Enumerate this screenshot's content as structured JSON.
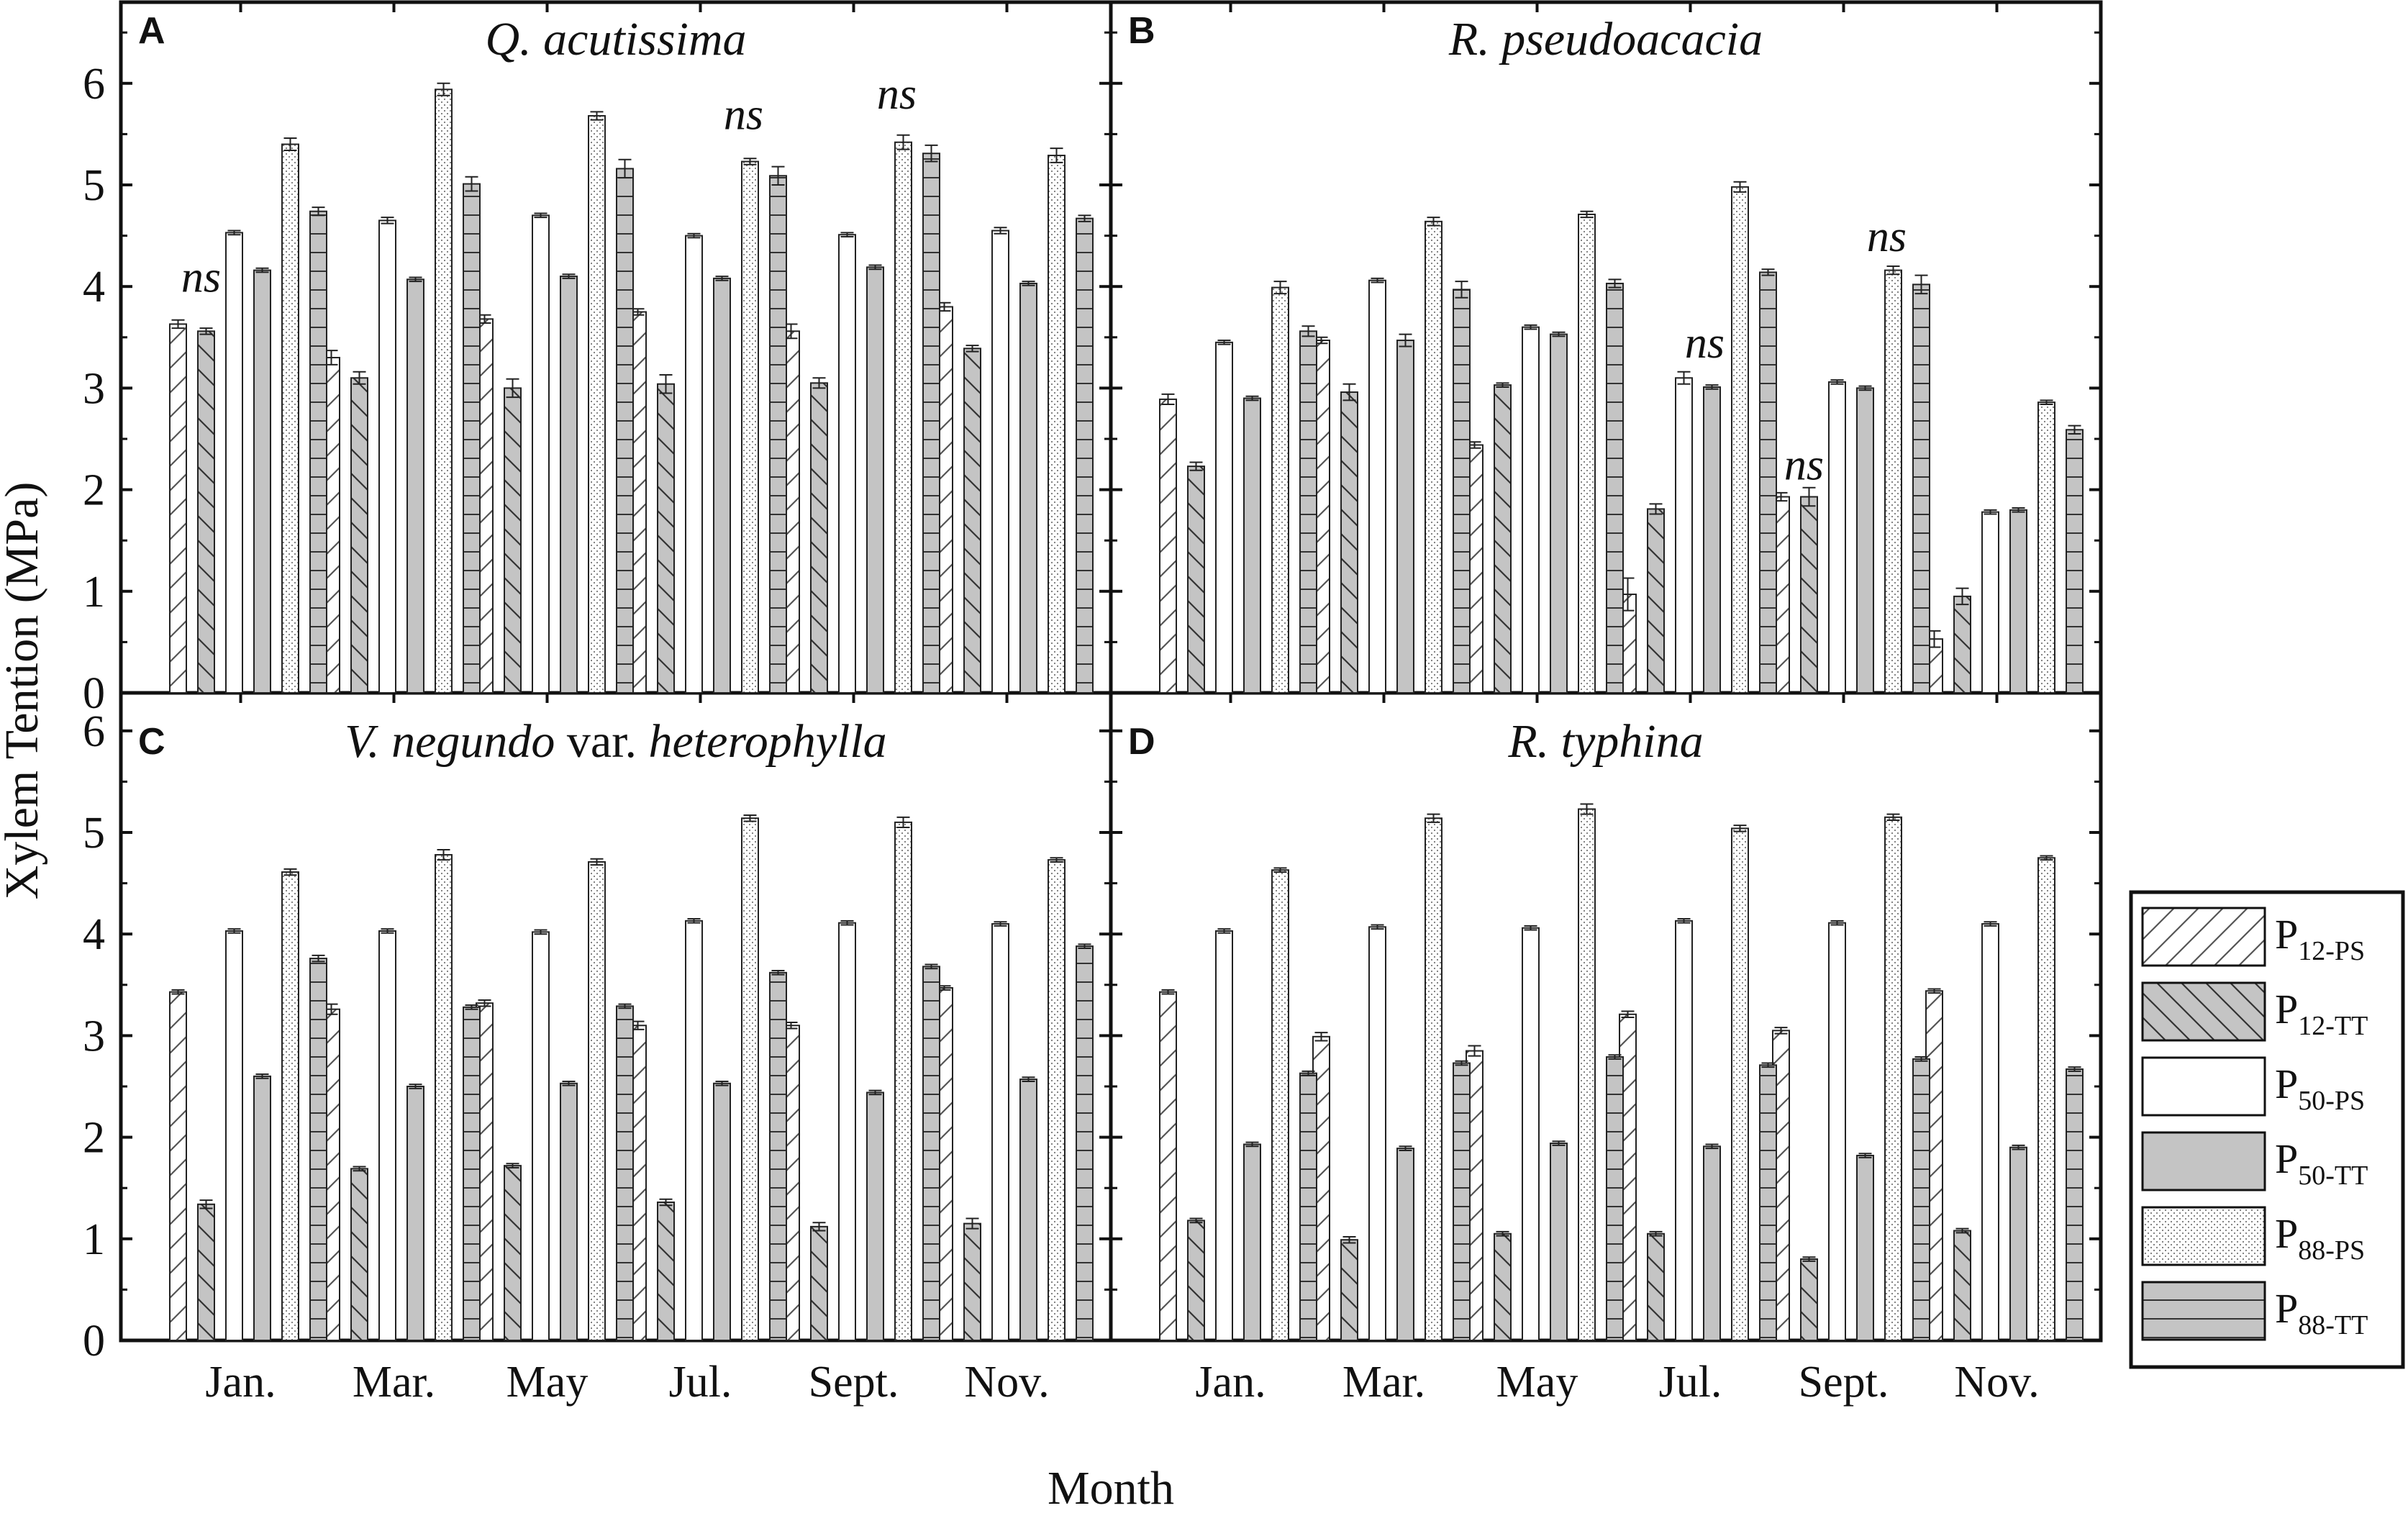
{
  "y_axis_title": "Xylem Tention (MPa)",
  "x_axis_title": "Month",
  "chart_data": [
    {
      "type": "bar",
      "panel": "A",
      "title": "Q. acutissima",
      "title_parts": [
        {
          "text": "Q. acutissima",
          "italic": true
        }
      ],
      "categories": [
        "Jan.",
        "Mar.",
        "May",
        "Jul.",
        "Sept.",
        "Nov."
      ],
      "ylim": [
        0,
        6.5
      ],
      "yticks": [
        0,
        1,
        2,
        3,
        4,
        5,
        6
      ],
      "series": [
        {
          "name": "P12-PS",
          "values": [
            3.63,
            3.3,
            3.68,
            3.75,
            3.56,
            3.8
          ],
          "errors": [
            0.04,
            0.07,
            0.04,
            0.03,
            0.07,
            0.04
          ]
        },
        {
          "name": "P12-TT",
          "values": [
            3.56,
            3.1,
            3.0,
            3.04,
            3.05,
            3.39
          ],
          "errors": [
            0.03,
            0.06,
            0.09,
            0.09,
            0.05,
            0.03
          ]
        },
        {
          "name": "P50-PS",
          "values": [
            4.53,
            4.65,
            4.7,
            4.5,
            4.51,
            4.55
          ],
          "errors": [
            0.02,
            0.03,
            0.02,
            0.02,
            0.02,
            0.03
          ]
        },
        {
          "name": "P50-TT",
          "values": [
            4.16,
            4.07,
            4.1,
            4.08,
            4.19,
            4.03
          ],
          "errors": [
            0.02,
            0.02,
            0.02,
            0.02,
            0.02,
            0.02
          ]
        },
        {
          "name": "P88-PS",
          "values": [
            5.4,
            5.94,
            5.68,
            5.23,
            5.42,
            5.29
          ],
          "errors": [
            0.06,
            0.06,
            0.04,
            0.03,
            0.07,
            0.07
          ]
        },
        {
          "name": "P88-TT",
          "values": [
            4.74,
            5.01,
            5.16,
            5.09,
            5.31,
            4.67
          ],
          "errors": [
            0.04,
            0.07,
            0.09,
            0.09,
            0.08,
            0.03
          ]
        }
      ],
      "annotations": [
        {
          "text": "ns",
          "category": 0,
          "value": 3.95
        },
        {
          "text": "ns",
          "category": 3,
          "value": 5.55
        },
        {
          "text": "ns",
          "category": 4,
          "value": 5.75
        }
      ]
    },
    {
      "type": "bar",
      "panel": "B",
      "title": "R. pseudoacacia",
      "title_parts": [
        {
          "text": "R. pseudoacacia",
          "italic": true
        }
      ],
      "categories": [
        "Jan.",
        "Mar.",
        "May",
        "Jul.",
        "Sept.",
        "Nov."
      ],
      "ylim": [
        0,
        6.5
      ],
      "yticks": [
        0,
        1,
        2,
        3,
        4,
        5,
        6
      ],
      "series": [
        {
          "name": "P12-PS",
          "values": [
            2.89,
            3.47,
            2.44,
            0.97,
            1.93,
            0.53
          ],
          "errors": [
            0.05,
            0.03,
            0.03,
            0.16,
            0.04,
            0.08
          ]
        },
        {
          "name": "P12-TT",
          "values": [
            2.23,
            2.96,
            3.03,
            1.81,
            1.93,
            0.95
          ],
          "errors": [
            0.04,
            0.08,
            0.02,
            0.05,
            0.09,
            0.08
          ]
        },
        {
          "name": "P50-PS",
          "values": [
            3.45,
            4.06,
            3.6,
            3.1,
            3.06,
            1.78
          ],
          "errors": [
            0.02,
            0.02,
            0.02,
            0.06,
            0.02,
            0.02
          ]
        },
        {
          "name": "P50-TT",
          "values": [
            2.9,
            3.47,
            3.53,
            3.01,
            3.0,
            1.8
          ],
          "errors": [
            0.02,
            0.06,
            0.02,
            0.02,
            0.02,
            0.02
          ]
        },
        {
          "name": "P88-PS",
          "values": [
            3.99,
            4.64,
            4.71,
            4.98,
            4.16,
            2.86
          ],
          "errors": [
            0.06,
            0.04,
            0.03,
            0.05,
            0.04,
            0.02
          ]
        },
        {
          "name": "P88-TT",
          "values": [
            3.56,
            3.97,
            4.03,
            4.14,
            4.02,
            2.59
          ],
          "errors": [
            0.05,
            0.08,
            0.04,
            0.03,
            0.09,
            0.04
          ]
        }
      ],
      "annotations": [
        {
          "text": "ns",
          "category": 3,
          "value": 3.3
        },
        {
          "text": "ns",
          "category": 4,
          "value": 2.1
        },
        {
          "text": "ns",
          "category": 4,
          "value": 4.35
        }
      ]
    },
    {
      "type": "bar",
      "panel": "C",
      "title": "V. negundo var. heterophylla",
      "title_parts": [
        {
          "text": "V. negundo",
          "italic": true
        },
        {
          "text": " var. ",
          "italic": false
        },
        {
          "text": "heterophylla",
          "italic": true
        }
      ],
      "categories": [
        "Jan.",
        "Mar.",
        "May",
        "Jul.",
        "Sept.",
        "Nov."
      ],
      "ylim": [
        0,
        6.5
      ],
      "yticks": [
        0,
        1,
        2,
        3,
        4,
        5,
        6
      ],
      "series": [
        {
          "name": "P12-PS",
          "values": [
            3.43,
            3.26,
            3.32,
            3.1,
            3.1,
            3.47
          ],
          "errors": [
            0.02,
            0.05,
            0.03,
            0.04,
            0.03,
            0.02
          ]
        },
        {
          "name": "P12-TT",
          "values": [
            1.34,
            1.69,
            1.72,
            1.36,
            1.12,
            1.15
          ],
          "errors": [
            0.04,
            0.02,
            0.02,
            0.03,
            0.04,
            0.05
          ]
        },
        {
          "name": "P50-PS",
          "values": [
            4.03,
            4.03,
            4.02,
            4.13,
            4.11,
            4.1
          ],
          "errors": [
            0.02,
            0.02,
            0.02,
            0.02,
            0.02,
            0.02
          ]
        },
        {
          "name": "P50-TT",
          "values": [
            2.6,
            2.5,
            2.53,
            2.53,
            2.44,
            2.57
          ],
          "errors": [
            0.02,
            0.02,
            0.02,
            0.02,
            0.02,
            0.02
          ]
        },
        {
          "name": "P88-PS",
          "values": [
            4.61,
            4.78,
            4.71,
            5.14,
            5.1,
            4.73
          ],
          "errors": [
            0.03,
            0.05,
            0.03,
            0.03,
            0.05,
            0.02
          ]
        },
        {
          "name": "P88-TT",
          "values": [
            3.76,
            3.28,
            3.29,
            3.62,
            3.68,
            3.88
          ],
          "errors": [
            0.03,
            0.02,
            0.02,
            0.02,
            0.02,
            0.02
          ]
        }
      ],
      "annotations": []
    },
    {
      "type": "bar",
      "panel": "D",
      "title": "R. typhina",
      "title_parts": [
        {
          "text": "R. typhina",
          "italic": true
        }
      ],
      "categories": [
        "Jan.",
        "Mar.",
        "May",
        "Jul.",
        "Sept.",
        "Nov."
      ],
      "ylim": [
        0,
        6.5
      ],
      "yticks": [
        0,
        1,
        2,
        3,
        4,
        5,
        6
      ],
      "series": [
        {
          "name": "P12-PS",
          "values": [
            3.43,
            2.99,
            2.85,
            3.21,
            3.05,
            3.44
          ],
          "errors": [
            0.02,
            0.04,
            0.05,
            0.03,
            0.03,
            0.02
          ]
        },
        {
          "name": "P12-TT",
          "values": [
            1.18,
            0.99,
            1.05,
            1.05,
            0.8,
            1.08
          ],
          "errors": [
            0.02,
            0.03,
            0.02,
            0.02,
            0.02,
            0.02
          ]
        },
        {
          "name": "P50-PS",
          "values": [
            4.03,
            4.07,
            4.06,
            4.13,
            4.11,
            4.1
          ],
          "errors": [
            0.02,
            0.02,
            0.02,
            0.02,
            0.02,
            0.02
          ]
        },
        {
          "name": "P50-TT",
          "values": [
            1.93,
            1.89,
            1.94,
            1.91,
            1.82,
            1.9
          ],
          "errors": [
            0.02,
            0.02,
            0.02,
            0.02,
            0.02,
            0.02
          ]
        },
        {
          "name": "P88-PS",
          "values": [
            4.63,
            5.14,
            5.23,
            5.04,
            5.15,
            4.75
          ],
          "errors": [
            0.02,
            0.04,
            0.05,
            0.03,
            0.03,
            0.02
          ]
        },
        {
          "name": "P88-TT",
          "values": [
            2.63,
            2.73,
            2.79,
            2.71,
            2.77,
            2.67
          ],
          "errors": [
            0.02,
            0.02,
            0.02,
            0.02,
            0.02,
            0.02
          ]
        }
      ],
      "annotations": []
    }
  ],
  "legend": {
    "placement": "right",
    "entries": [
      {
        "base": "P",
        "sub": "12-PS",
        "pattern": "hatch-slash"
      },
      {
        "base": "P",
        "sub": "12-TT",
        "pattern": "hatch-backslash"
      },
      {
        "base": "P",
        "sub": "50-PS",
        "pattern": "open"
      },
      {
        "base": "P",
        "sub": "50-TT",
        "pattern": "solid-gray"
      },
      {
        "base": "P",
        "sub": "88-PS",
        "pattern": "dots"
      },
      {
        "base": "P",
        "sub": "88-TT",
        "pattern": "horizontal-lines"
      }
    ]
  },
  "colors": {
    "bar_edge": "#222222",
    "gray_fill": "#c4c4c4",
    "white_fill": "#ffffff",
    "axis": "#111111"
  }
}
